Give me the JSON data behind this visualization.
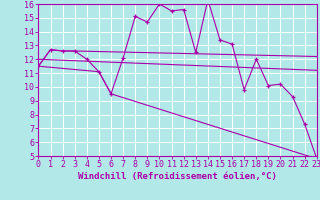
{
  "xlabel": "Windchill (Refroidissement éolien,°C)",
  "bg_color": "#b3e8e8",
  "line_color": "#aa00aa",
  "grid_color": "#ffffff",
  "xmin": 0,
  "xmax": 23,
  "ymin": 5,
  "ymax": 16,
  "series1_x": [
    0,
    1,
    2,
    3,
    4,
    5,
    6,
    7,
    8,
    9,
    10,
    11,
    12,
    13,
    14,
    15,
    16,
    17,
    18,
    19,
    20,
    21,
    22,
    23
  ],
  "series1_y": [
    11.5,
    12.7,
    12.6,
    12.6,
    12.0,
    11.1,
    9.5,
    12.1,
    15.1,
    14.7,
    16.0,
    15.5,
    15.6,
    12.5,
    16.3,
    13.4,
    13.1,
    9.8,
    12.0,
    10.1,
    10.2,
    9.3,
    7.3,
    4.8
  ],
  "series2_x": [
    0,
    1,
    2,
    3,
    23
  ],
  "series2_y": [
    11.5,
    12.7,
    12.6,
    12.6,
    12.2
  ],
  "series3_x": [
    0,
    23
  ],
  "series3_y": [
    12.0,
    11.2
  ],
  "series4_x": [
    0,
    5,
    6,
    23
  ],
  "series4_y": [
    11.5,
    11.1,
    9.5,
    4.8
  ],
  "yticks": [
    5,
    6,
    7,
    8,
    9,
    10,
    11,
    12,
    13,
    14,
    15,
    16
  ],
  "xticks": [
    0,
    1,
    2,
    3,
    4,
    5,
    6,
    7,
    8,
    9,
    10,
    11,
    12,
    13,
    14,
    15,
    16,
    17,
    18,
    19,
    20,
    21,
    22,
    23
  ],
  "tick_fontsize": 6.0,
  "xlabel_fontsize": 6.5
}
